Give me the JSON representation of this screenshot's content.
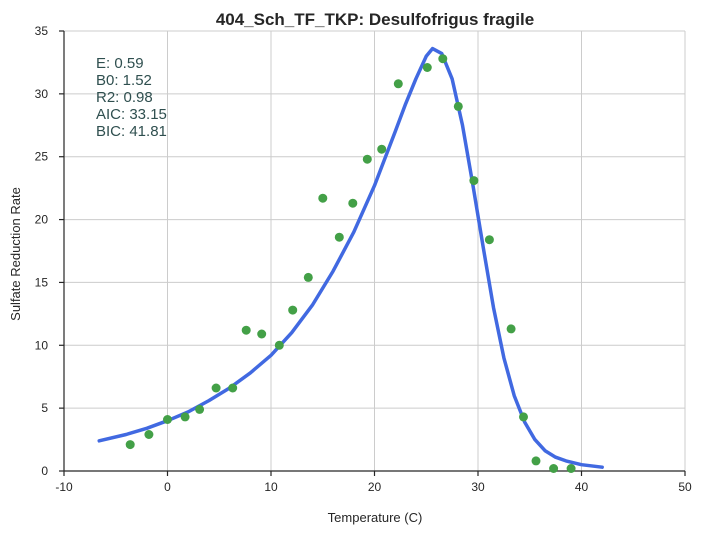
{
  "chart_data": {
    "type": "scatter",
    "title": "404_Sch_TF_TKP: Desulfofrigus fragile",
    "xlabel": "Temperature (C)",
    "ylabel": "Sulfate Reduction Rate",
    "xlim": [
      -10,
      50
    ],
    "ylim": [
      0,
      35
    ],
    "xticks": [
      -10,
      0,
      10,
      20,
      30,
      40,
      50
    ],
    "yticks": [
      0,
      5,
      10,
      15,
      20,
      25,
      30,
      35
    ],
    "grid": true,
    "annotations": [
      "E:  0.59",
      "B0:  1.52",
      "R2:  0.98",
      "AIC: 33.15",
      "BIC: 41.81"
    ],
    "colors": {
      "points": "#43a047",
      "fit": "#4169e1"
    },
    "series": [
      {
        "type": "scatter",
        "x": [
          -3.6,
          -1.8,
          0.0,
          1.7,
          3.1,
          4.7,
          6.3,
          7.6,
          9.1,
          10.8,
          12.1,
          13.6,
          15.0,
          16.6,
          17.9,
          19.3,
          20.7,
          22.3,
          25.1,
          26.6,
          28.1,
          29.6,
          31.1,
          33.2,
          34.4,
          35.6,
          37.3,
          39.0
        ],
        "y": [
          2.1,
          2.9,
          4.1,
          4.3,
          4.9,
          6.6,
          6.6,
          11.2,
          10.9,
          10.0,
          12.8,
          15.4,
          21.7,
          18.6,
          21.3,
          24.8,
          25.6,
          30.8,
          32.1,
          32.8,
          29.0,
          23.1,
          18.4,
          11.3,
          4.3,
          0.8,
          0.2,
          0.2
        ]
      },
      {
        "type": "line",
        "x": [
          -6.6,
          -4,
          -2,
          0,
          2,
          4,
          6,
          8,
          10,
          12,
          14,
          16,
          18,
          20,
          22,
          23,
          24,
          25,
          25.6,
          26.5,
          27.5,
          28.5,
          29.5,
          30.5,
          31.5,
          32.5,
          33.5,
          34.5,
          35.5,
          36.5,
          37.5,
          38.5,
          40,
          42
        ],
        "y": [
          2.4,
          2.9,
          3.4,
          4.0,
          4.7,
          5.6,
          6.6,
          7.8,
          9.2,
          11.0,
          13.2,
          15.9,
          19.0,
          22.7,
          27.0,
          29.2,
          31.2,
          33.0,
          33.6,
          33.2,
          31.2,
          27.5,
          22.8,
          17.8,
          13.0,
          9.0,
          6.0,
          3.9,
          2.5,
          1.6,
          1.1,
          0.8,
          0.5,
          0.3
        ]
      }
    ]
  }
}
